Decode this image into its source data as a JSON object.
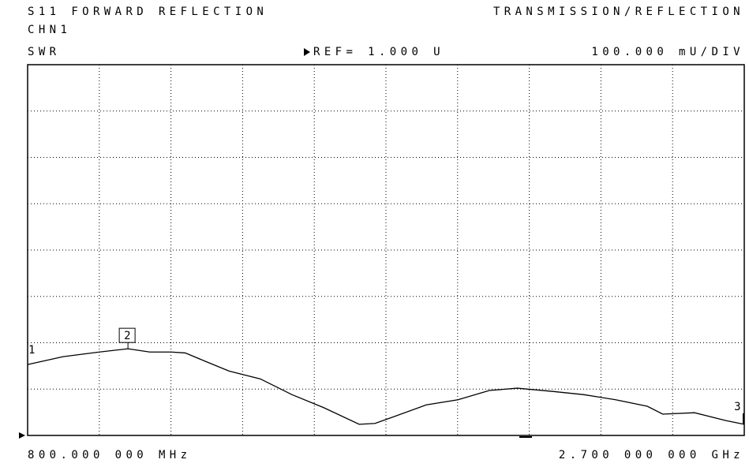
{
  "chart_data": {
    "type": "line",
    "title": "S11 FORWARD REFLECTION",
    "mode": "TRANSMISSION/REFLECTION",
    "channel": "CHN1",
    "format": "SWR",
    "reference": "REF= 1.000 U",
    "scale": "100.000 mU/DIV",
    "start_label": "800.000 000 MHz",
    "stop_label": "2.700 000 000 GHz",
    "xlim": [
      0.8,
      2.7
    ],
    "ylim": [
      1.0,
      1.8
    ],
    "xticks": [
      0.8,
      0.99,
      1.18,
      1.37,
      1.56,
      1.75,
      1.94,
      2.13,
      2.32,
      2.51,
      2.7
    ],
    "yticks": [
      1.0,
      1.1,
      1.2,
      1.3,
      1.4,
      1.5,
      1.6,
      1.7,
      1.8
    ],
    "grid": true,
    "color": "#000000",
    "series": [
      {
        "name": "SWR",
        "color": "#000000",
        "x": [
          0.8,
          0.894,
          0.99,
          1.066,
          1.124,
          1.181,
          1.218,
          1.271,
          1.334,
          1.417,
          1.501,
          1.585,
          1.679,
          1.721,
          1.773,
          1.857,
          1.941,
          2.024,
          2.098,
          2.192,
          2.275,
          2.359,
          2.443,
          2.484,
          2.568,
          2.652,
          2.7
        ],
        "values": [
          1.153,
          1.17,
          1.18,
          1.187,
          1.18,
          1.18,
          1.178,
          1.16,
          1.139,
          1.122,
          1.088,
          1.06,
          1.024,
          1.026,
          1.041,
          1.066,
          1.077,
          1.097,
          1.102,
          1.095,
          1.088,
          1.077,
          1.063,
          1.046,
          1.049,
          1.032,
          1.024
        ]
      }
    ],
    "markers": [
      {
        "label": "1",
        "x": 0.8,
        "y": 1.153
      },
      {
        "label": "2",
        "x": 1.066,
        "y": 1.187
      },
      {
        "label": "3",
        "x": 2.7,
        "y": 1.024
      }
    ]
  }
}
